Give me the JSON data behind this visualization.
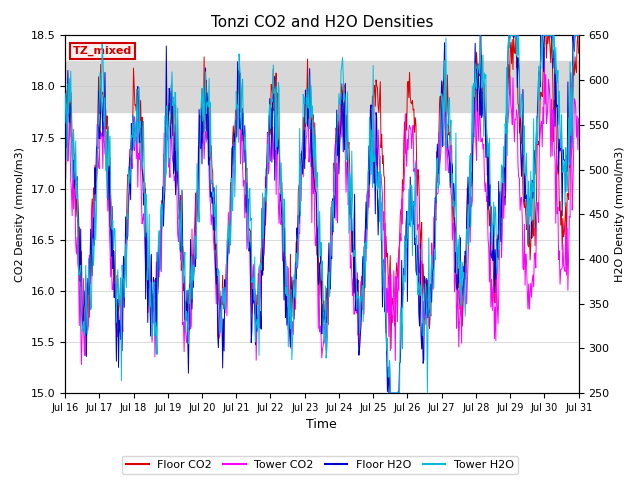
{
  "title": "Tonzi CO2 and H2O Densities",
  "xlabel": "Time",
  "ylabel_left": "CO2 Density (mmol/m3)",
  "ylabel_right": "H2O Density (mmol/m3)",
  "xlim": [
    0,
    360
  ],
  "ylim_left": [
    15.0,
    18.5
  ],
  "ylim_right": [
    250,
    650
  ],
  "yticks_left": [
    15.0,
    15.5,
    16.0,
    16.5,
    17.0,
    17.5,
    18.0,
    18.5
  ],
  "yticks_right": [
    250,
    300,
    350,
    400,
    450,
    500,
    550,
    600,
    650
  ],
  "xtick_labels": [
    "Jul 16",
    "Jul 17",
    "Jul 18",
    "Jul 19",
    "Jul 20",
    "Jul 21",
    "Jul 22",
    "Jul 23",
    "Jul 24",
    "Jul 25",
    "Jul 26",
    "Jul 27",
    "Jul 28",
    "Jul 29",
    "Jul 30",
    "Jul 31"
  ],
  "xtick_positions": [
    0,
    24,
    48,
    72,
    96,
    120,
    144,
    168,
    192,
    216,
    240,
    264,
    288,
    312,
    336,
    360
  ],
  "shading_ymin": 17.75,
  "shading_ymax": 18.25,
  "annotation_text": "TZ_mixed",
  "annotation_color": "#cc0000",
  "line_colors": {
    "floor_co2": "#dd0000",
    "tower_co2": "#ff00ff",
    "floor_h2o": "#0000cc",
    "tower_h2o": "#00bbdd"
  },
  "legend_labels": [
    "Floor CO2",
    "Tower CO2",
    "Floor H2O",
    "Tower H2O"
  ],
  "n_points": 721,
  "figsize": [
    6.4,
    4.8
  ],
  "dpi": 100
}
